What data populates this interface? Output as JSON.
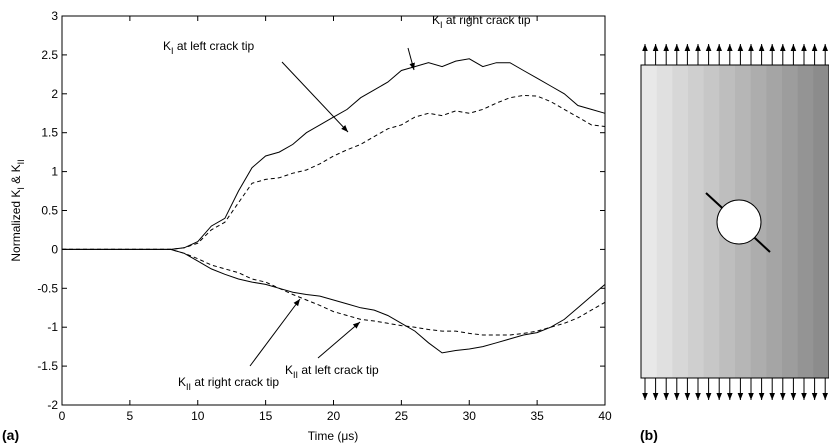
{
  "chart_data": {
    "type": "line",
    "xlabel": "Time (μs)",
    "ylabel": [
      {
        "text": "Normalized K"
      },
      {
        "sub": "I"
      },
      {
        "text": " & K"
      },
      {
        "sub": "II"
      }
    ],
    "panel_labels": [
      "(a)",
      "(b)"
    ],
    "x": [
      0,
      1,
      2,
      3,
      4,
      5,
      6,
      7,
      8,
      9,
      10,
      11,
      12,
      13,
      14,
      15,
      16,
      17,
      18,
      19,
      20,
      21,
      22,
      23,
      24,
      25,
      26,
      27,
      28,
      29,
      30,
      31,
      32,
      33,
      34,
      35,
      36,
      37,
      38,
      39,
      40
    ],
    "series": [
      {
        "color": "#000000",
        "dash": "solid",
        "values": [
          0,
          0,
          0,
          0,
          0,
          0,
          0,
          0,
          0,
          0.02,
          0.1,
          0.3,
          0.4,
          0.75,
          1.05,
          1.2,
          1.25,
          1.35,
          1.5,
          1.6,
          1.7,
          1.8,
          1.95,
          2.05,
          2.15,
          2.3,
          2.35,
          2.4,
          2.35,
          2.42,
          2.45,
          2.35,
          2.4,
          2.4,
          2.3,
          2.2,
          2.1,
          2.0,
          1.85,
          1.8,
          1.75
        ]
      },
      {
        "color": "#000000",
        "dash": "dashed",
        "values": [
          0,
          0,
          0,
          0,
          0,
          0,
          0,
          0,
          0,
          0.02,
          0.08,
          0.25,
          0.35,
          0.6,
          0.85,
          0.9,
          0.92,
          0.98,
          1.02,
          1.1,
          1.2,
          1.28,
          1.35,
          1.45,
          1.55,
          1.6,
          1.7,
          1.75,
          1.72,
          1.78,
          1.75,
          1.8,
          1.88,
          1.95,
          1.98,
          1.97,
          1.9,
          1.8,
          1.7,
          1.6,
          1.58
        ]
      },
      {
        "color": "#000000",
        "dash": "solid",
        "values": [
          0,
          0,
          0,
          0,
          0,
          0,
          0,
          0,
          0,
          -0.05,
          -0.15,
          -0.25,
          -0.32,
          -0.38,
          -0.42,
          -0.45,
          -0.5,
          -0.55,
          -0.58,
          -0.6,
          -0.65,
          -0.7,
          -0.75,
          -0.78,
          -0.85,
          -0.95,
          -1.05,
          -1.2,
          -1.33,
          -1.3,
          -1.28,
          -1.25,
          -1.2,
          -1.15,
          -1.1,
          -1.07,
          -1.0,
          -0.9,
          -0.75,
          -0.6,
          -0.45
        ]
      },
      {
        "color": "#000000",
        "dash": "dashed",
        "values": [
          0,
          0,
          0,
          0,
          0,
          0,
          0,
          0,
          0,
          -0.05,
          -0.12,
          -0.2,
          -0.25,
          -0.3,
          -0.38,
          -0.42,
          -0.5,
          -0.58,
          -0.65,
          -0.72,
          -0.8,
          -0.85,
          -0.9,
          -0.92,
          -0.95,
          -0.98,
          -1.0,
          -1.03,
          -1.05,
          -1.05,
          -1.08,
          -1.1,
          -1.1,
          -1.1,
          -1.08,
          -1.05,
          -1.0,
          -0.95,
          -0.88,
          -0.78,
          -0.68
        ]
      }
    ],
    "annotations": [
      {
        "symbol": "K",
        "sub": "I",
        "text": " at right crack tip"
      },
      {
        "symbol": "K",
        "sub": "I",
        "text": " at left crack tip"
      },
      {
        "symbol": "K",
        "sub": "II",
        "text": " at right crack tip"
      },
      {
        "symbol": "K",
        "sub": "II",
        "text": " at left crack tip"
      }
    ],
    "xlim": [
      0,
      40
    ],
    "xticks": [
      0,
      5,
      10,
      15,
      20,
      25,
      30,
      35,
      40
    ],
    "ylim": [
      -2,
      3
    ],
    "yticks": [
      -2,
      -1.5,
      -1,
      -0.5,
      0,
      0.5,
      1,
      1.5,
      2,
      2.5,
      3
    ],
    "grid": false
  }
}
